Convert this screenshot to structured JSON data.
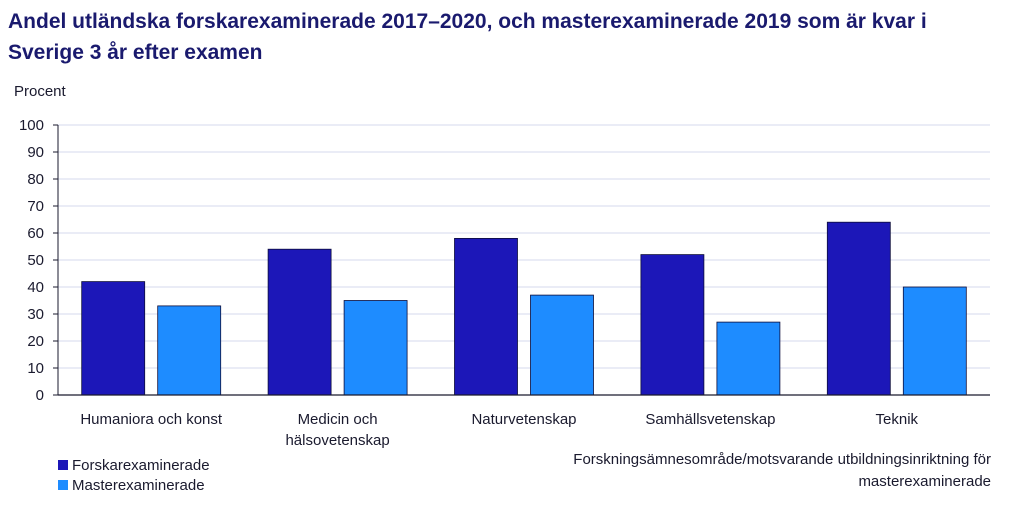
{
  "chart_data": {
    "type": "bar",
    "title": "Andel utländska forskarexaminerade 2017–2020, och masterexaminerade 2019 som är kvar i Sverige 3 år efter examen",
    "ylabel": "Procent",
    "xlabel": "Forskningsämnesområde/motsvarande utbildningsinriktning för masterexaminerade",
    "ylim": [
      0,
      100
    ],
    "yticks": [
      0,
      10,
      20,
      30,
      40,
      50,
      60,
      70,
      80,
      90,
      100
    ],
    "grid": true,
    "legend_position": "bottom-left",
    "categories": [
      [
        "Humaniora och konst"
      ],
      [
        "Medicin och",
        "hälsovetenskap"
      ],
      [
        "Naturvetenskap"
      ],
      [
        "Samhällsvetenskap"
      ],
      [
        "Teknik"
      ]
    ],
    "series": [
      {
        "name": "Forskarexaminerade",
        "color": "#1c17b8",
        "values": [
          42,
          54,
          58,
          52,
          64
        ]
      },
      {
        "name": "Masterexaminerade",
        "color": "#1e8cff",
        "values": [
          33,
          35,
          37,
          27,
          40
        ]
      }
    ]
  }
}
